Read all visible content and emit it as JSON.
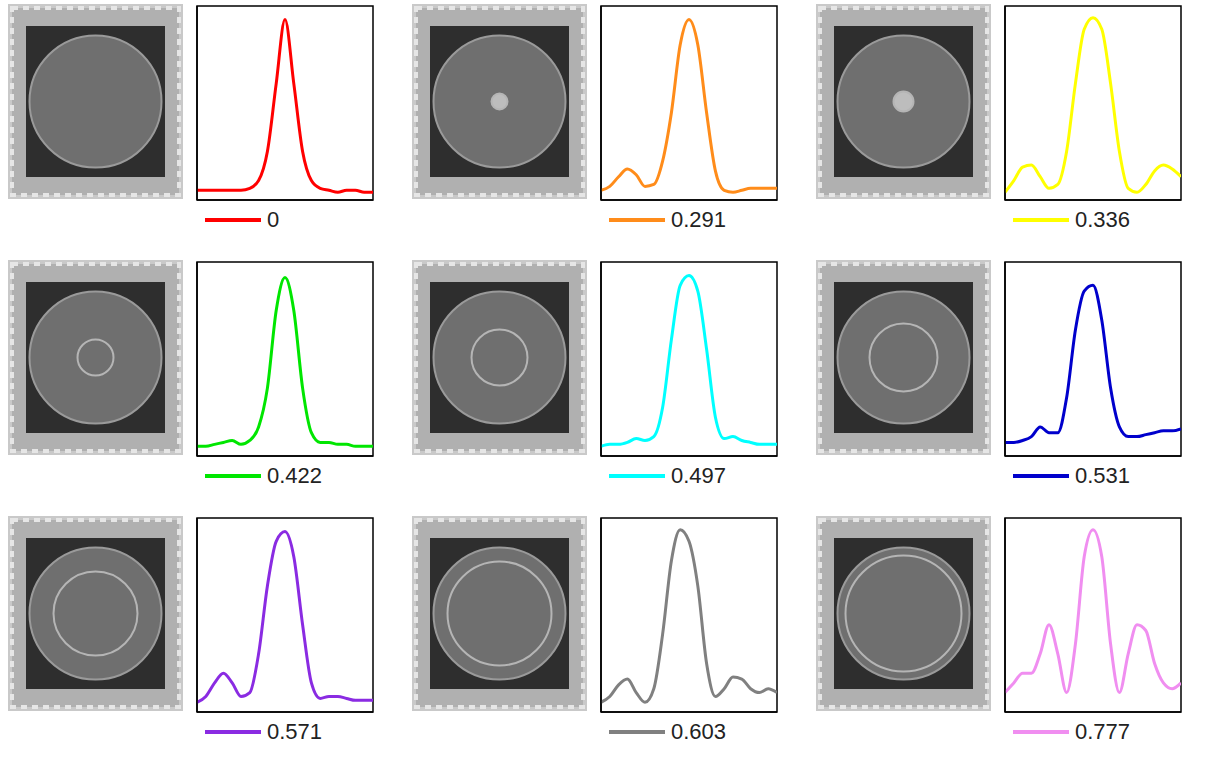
{
  "chart_data": [
    {
      "type": "line",
      "x": [
        0,
        1,
        2,
        3,
        4,
        5,
        6,
        7,
        8,
        9,
        10,
        11,
        12,
        13,
        14,
        15,
        16,
        17,
        18,
        19,
        20
      ],
      "xlim": [
        0,
        20
      ],
      "ylim": [
        0,
        1
      ],
      "tick_labels": false,
      "grid": false,
      "legend": "bottom",
      "series": [
        {
          "name": "0",
          "color": "#ff0000",
          "values": [
            0.05,
            0.05,
            0.05,
            0.05,
            0.05,
            0.05,
            0.06,
            0.1,
            0.25,
            0.6,
            0.93,
            0.6,
            0.25,
            0.1,
            0.06,
            0.05,
            0.04,
            0.05,
            0.05,
            0.04,
            0.04
          ]
        }
      ]
    },
    {
      "type": "line",
      "x": [
        0,
        1,
        2,
        3,
        4,
        5,
        6,
        7,
        8,
        9,
        10,
        11,
        12,
        13,
        14,
        15,
        16,
        17,
        18,
        19,
        20
      ],
      "xlim": [
        0,
        20
      ],
      "ylim": [
        0,
        1
      ],
      "tick_labels": false,
      "grid": false,
      "legend": "bottom",
      "series": [
        {
          "name": "0.291",
          "color": "#ff8c1a",
          "values": [
            0.05,
            0.07,
            0.12,
            0.16,
            0.13,
            0.07,
            0.08,
            0.2,
            0.45,
            0.8,
            0.93,
            0.8,
            0.45,
            0.15,
            0.05,
            0.04,
            0.05,
            0.06,
            0.06,
            0.06,
            0.06
          ]
        }
      ]
    },
    {
      "type": "line",
      "x": [
        0,
        1,
        2,
        3,
        4,
        5,
        6,
        7,
        8,
        9,
        10,
        11,
        12,
        13,
        14,
        15,
        16,
        17,
        18,
        19,
        20
      ],
      "xlim": [
        0,
        20
      ],
      "ylim": [
        0,
        1
      ],
      "tick_labels": false,
      "grid": false,
      "legend": "bottom",
      "series": [
        {
          "name": "0.336",
          "color": "#ffff00",
          "values": [
            0.04,
            0.1,
            0.17,
            0.18,
            0.12,
            0.06,
            0.08,
            0.25,
            0.6,
            0.88,
            0.94,
            0.88,
            0.6,
            0.25,
            0.06,
            0.04,
            0.08,
            0.15,
            0.18,
            0.16,
            0.12
          ]
        }
      ]
    },
    {
      "type": "line",
      "x": [
        0,
        1,
        2,
        3,
        4,
        5,
        6,
        7,
        8,
        9,
        10,
        11,
        12,
        13,
        14,
        15,
        16,
        17,
        18,
        19,
        20
      ],
      "xlim": [
        0,
        20
      ],
      "ylim": [
        0,
        1
      ],
      "tick_labels": false,
      "grid": false,
      "legend": "bottom",
      "series": [
        {
          "name": "0.422",
          "color": "#00e600",
          "values": [
            0.05,
            0.05,
            0.06,
            0.07,
            0.08,
            0.06,
            0.08,
            0.15,
            0.35,
            0.75,
            0.92,
            0.75,
            0.35,
            0.12,
            0.07,
            0.07,
            0.06,
            0.06,
            0.05,
            0.05,
            0.05
          ]
        }
      ]
    },
    {
      "type": "line",
      "x": [
        0,
        1,
        2,
        3,
        4,
        5,
        6,
        7,
        8,
        9,
        10,
        11,
        12,
        13,
        14,
        15,
        16,
        17,
        18,
        19,
        20
      ],
      "xlim": [
        0,
        20
      ],
      "ylim": [
        0,
        1
      ],
      "tick_labels": false,
      "grid": false,
      "legend": "bottom",
      "series": [
        {
          "name": "0.497",
          "color": "#00ffff",
          "values": [
            0.05,
            0.06,
            0.06,
            0.07,
            0.09,
            0.08,
            0.1,
            0.25,
            0.6,
            0.88,
            0.93,
            0.85,
            0.55,
            0.2,
            0.09,
            0.1,
            0.08,
            0.07,
            0.06,
            0.06,
            0.06
          ]
        }
      ]
    },
    {
      "type": "line",
      "x": [
        0,
        1,
        2,
        3,
        4,
        5,
        6,
        7,
        8,
        9,
        10,
        11,
        12,
        13,
        14,
        15,
        16,
        17,
        18,
        19,
        20
      ],
      "xlim": [
        0,
        20
      ],
      "ylim": [
        0,
        1
      ],
      "tick_labels": false,
      "grid": false,
      "legend": "bottom",
      "series": [
        {
          "name": "0.531",
          "color": "#0000cc",
          "values": [
            0.07,
            0.07,
            0.08,
            0.1,
            0.15,
            0.12,
            0.12,
            0.3,
            0.65,
            0.85,
            0.88,
            0.7,
            0.35,
            0.15,
            0.1,
            0.1,
            0.11,
            0.12,
            0.13,
            0.13,
            0.14
          ]
        }
      ]
    },
    {
      "type": "line",
      "x": [
        0,
        1,
        2,
        3,
        4,
        5,
        6,
        7,
        8,
        9,
        10,
        11,
        12,
        13,
        14,
        15,
        16,
        17,
        18,
        19,
        20
      ],
      "xlim": [
        0,
        20
      ],
      "ylim": [
        0,
        1
      ],
      "tick_labels": false,
      "grid": false,
      "legend": "bottom",
      "series": [
        {
          "name": "0.571",
          "color": "#8a2be2",
          "values": [
            0.05,
            0.08,
            0.15,
            0.2,
            0.15,
            0.08,
            0.1,
            0.3,
            0.65,
            0.88,
            0.93,
            0.8,
            0.45,
            0.15,
            0.07,
            0.08,
            0.08,
            0.07,
            0.06,
            0.06,
            0.06
          ]
        }
      ]
    },
    {
      "type": "line",
      "x": [
        0,
        1,
        2,
        3,
        4,
        5,
        6,
        7,
        8,
        9,
        10,
        11,
        12,
        13,
        14,
        15,
        16,
        17,
        18,
        19,
        20
      ],
      "xlim": [
        0,
        20
      ],
      "ylim": [
        0,
        1
      ],
      "tick_labels": false,
      "grid": false,
      "legend": "bottom",
      "series": [
        {
          "name": "0.603",
          "color": "#808080",
          "values": [
            0.05,
            0.08,
            0.14,
            0.17,
            0.1,
            0.05,
            0.12,
            0.4,
            0.78,
            0.94,
            0.88,
            0.65,
            0.25,
            0.08,
            0.12,
            0.18,
            0.17,
            0.12,
            0.1,
            0.12,
            0.1
          ]
        }
      ]
    },
    {
      "type": "line",
      "x": [
        0,
        1,
        2,
        3,
        4,
        5,
        6,
        7,
        8,
        9,
        10,
        11,
        12,
        13,
        14,
        15,
        16,
        17,
        18,
        19,
        20
      ],
      "xlim": [
        0,
        20
      ],
      "ylim": [
        0,
        1
      ],
      "tick_labels": false,
      "grid": false,
      "legend": "bottom",
      "series": [
        {
          "name": "0.777",
          "color": "#f08ef0",
          "values": [
            0.1,
            0.15,
            0.2,
            0.2,
            0.3,
            0.45,
            0.3,
            0.1,
            0.35,
            0.8,
            0.94,
            0.8,
            0.35,
            0.1,
            0.3,
            0.45,
            0.42,
            0.25,
            0.15,
            0.12,
            0.15
          ]
        }
      ]
    }
  ]
}
